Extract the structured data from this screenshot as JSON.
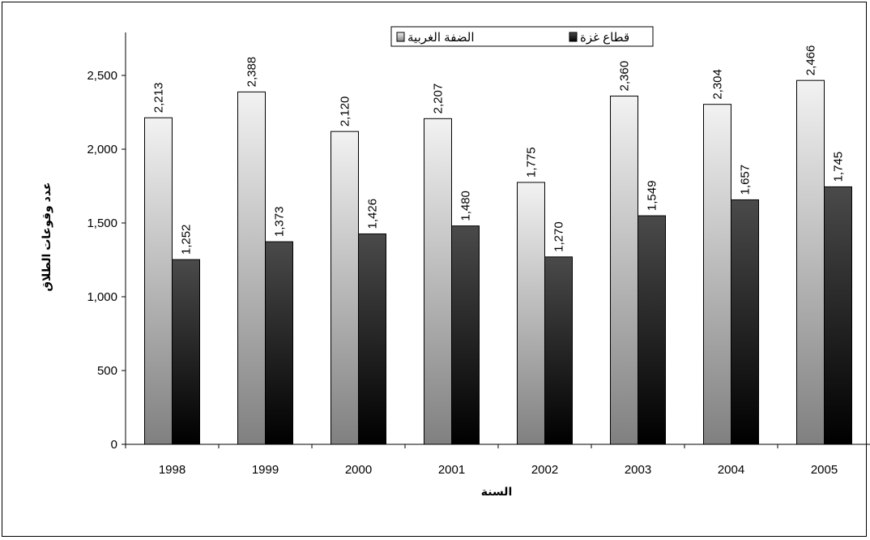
{
  "chart_data": {
    "type": "bar",
    "categories": [
      "1998",
      "1999",
      "2000",
      "2001",
      "2002",
      "2003",
      "2004",
      "2005"
    ],
    "series": [
      {
        "name": "الضفة الغربية",
        "values": [
          2213,
          2388,
          2120,
          2207,
          1775,
          2360,
          2304,
          2466
        ],
        "labels": [
          "2,213",
          "2,388",
          "2,120",
          "2,207",
          "1,775",
          "2,360",
          "2,304",
          "2,466"
        ]
      },
      {
        "name": "قطاع غزة",
        "values": [
          1252,
          1373,
          1426,
          1480,
          1270,
          1549,
          1657,
          1745
        ],
        "labels": [
          "1,252",
          "1,373",
          "1,426",
          "1,480",
          "1,270",
          "1,549",
          "1,657",
          "1,745"
        ]
      }
    ],
    "xlabel": "السنة",
    "ylabel": "عدد وقوعات الطلاق",
    "ylim": [
      0,
      2500
    ],
    "yticks": [
      0,
      500,
      1000,
      1500,
      2000,
      2500
    ],
    "ytick_labels": [
      "0",
      "500",
      "1,000",
      "1,500",
      "2,000",
      "2,500"
    ],
    "legend_position": "top-right",
    "grid": false,
    "colors": {
      "series1_top": "#f2f2f2",
      "series1_bottom": "#808080",
      "series2_top": "#4a4a4a",
      "series2_bottom": "#000000",
      "frame": "#000000"
    }
  }
}
